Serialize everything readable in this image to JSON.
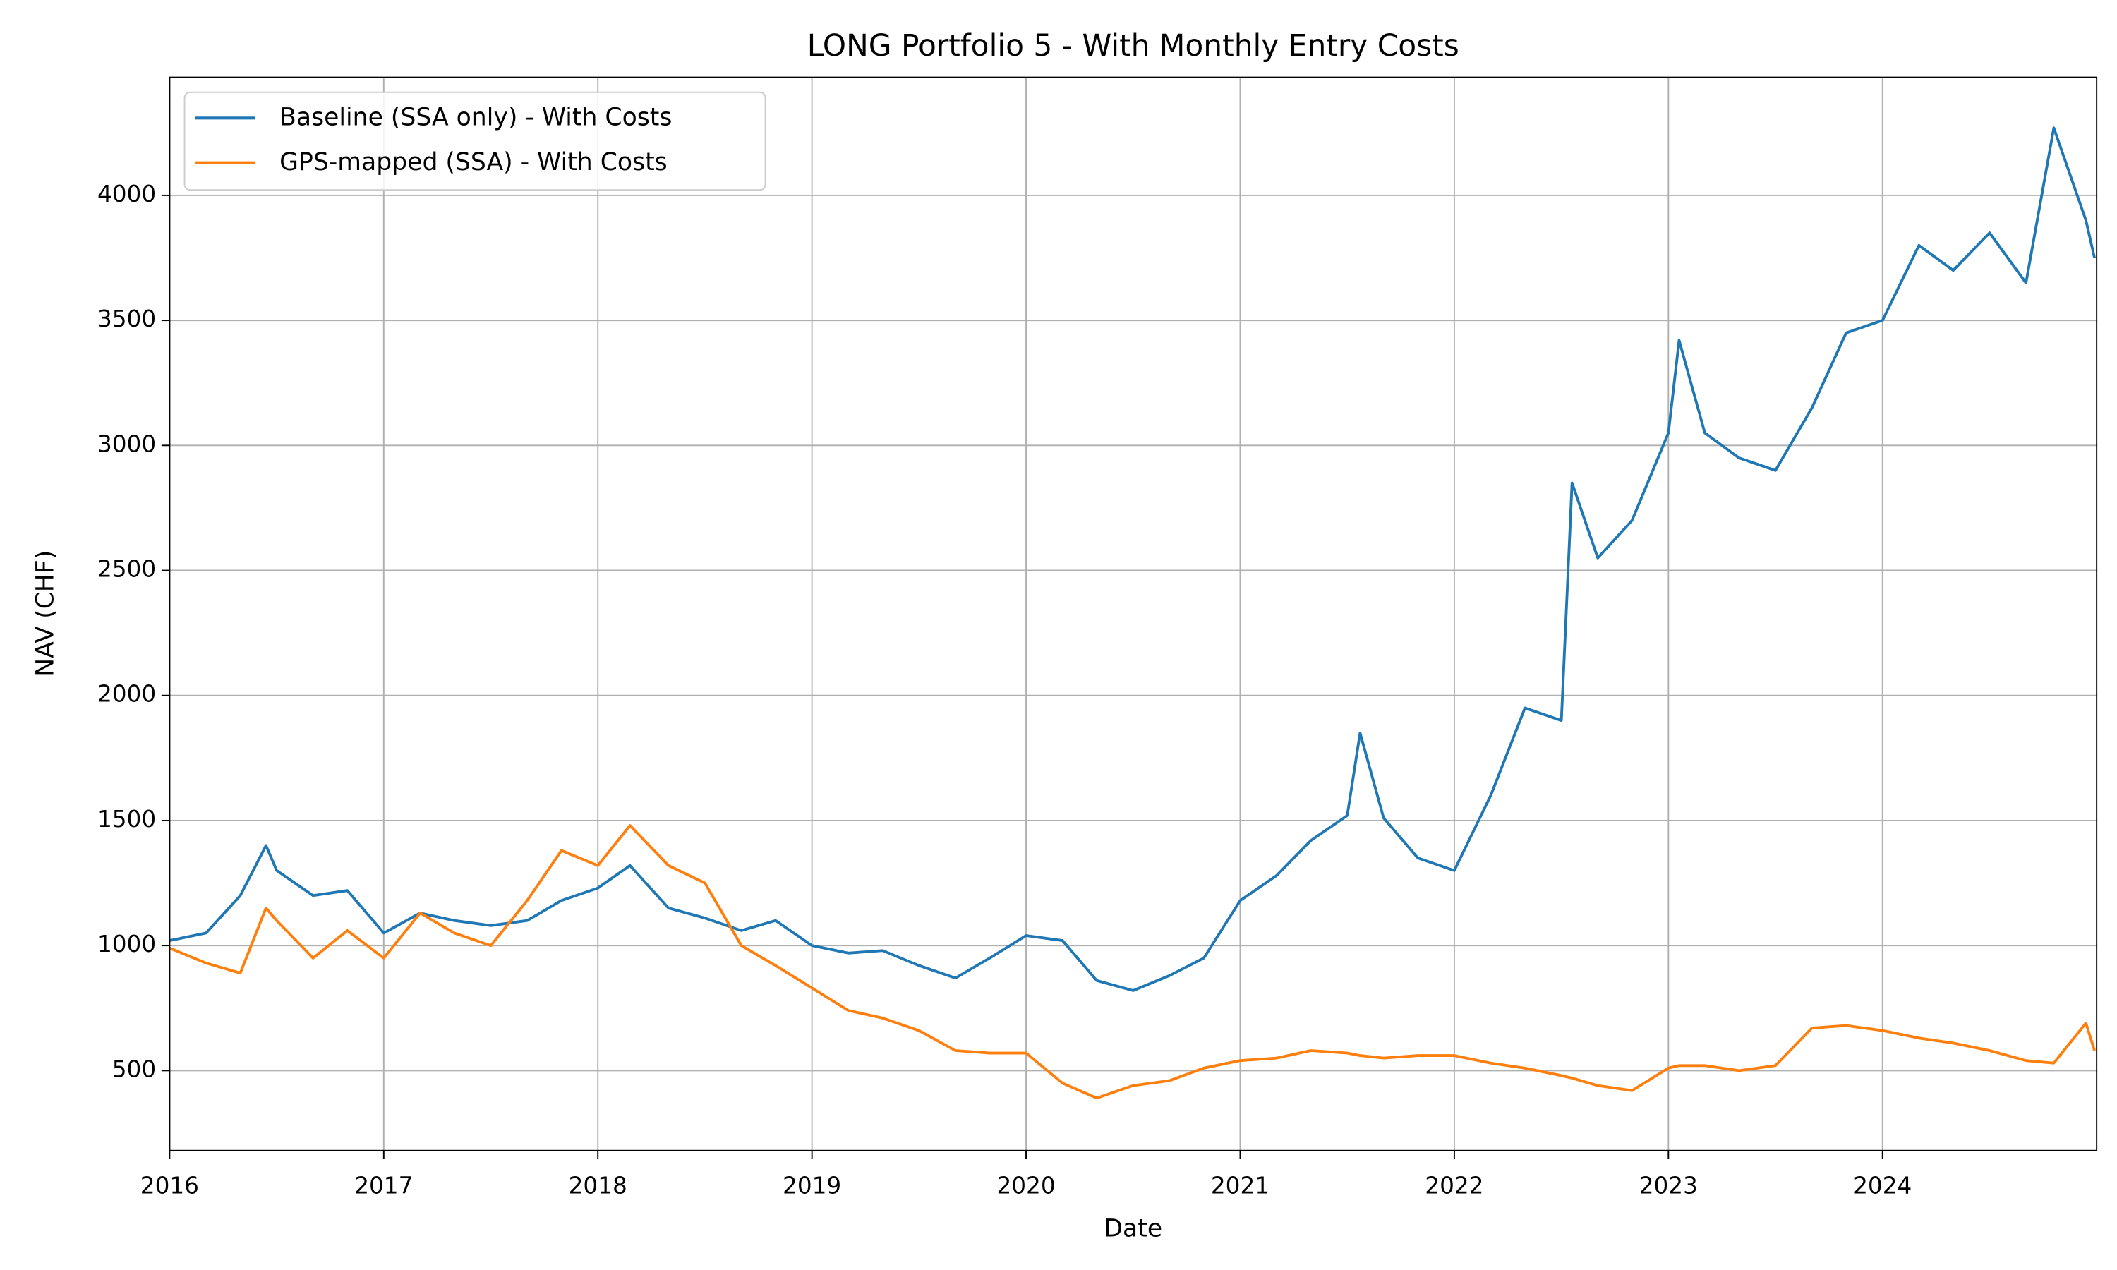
{
  "chart_data": {
    "type": "line",
    "title": "LONG Portfolio 5 - With Monthly Entry Costs",
    "xlabel": "Date",
    "ylabel": "NAV (CHF)",
    "x": [
      2016.0,
      2016.17,
      2016.33,
      2016.45,
      2016.5,
      2016.67,
      2016.83,
      2017.0,
      2017.17,
      2017.33,
      2017.5,
      2017.67,
      2017.83,
      2018.0,
      2018.15,
      2018.33,
      2018.5,
      2018.67,
      2018.83,
      2019.0,
      2019.17,
      2019.33,
      2019.5,
      2019.67,
      2019.83,
      2020.0,
      2020.17,
      2020.33,
      2020.5,
      2020.67,
      2020.83,
      2021.0,
      2021.17,
      2021.33,
      2021.5,
      2021.56,
      2021.67,
      2021.83,
      2022.0,
      2022.17,
      2022.33,
      2022.5,
      2022.55,
      2022.67,
      2022.83,
      2023.0,
      2023.05,
      2023.17,
      2023.33,
      2023.5,
      2023.67,
      2023.83,
      2024.0,
      2024.17,
      2024.33,
      2024.5,
      2024.67,
      2024.8,
      2024.95,
      2024.99
    ],
    "series": [
      {
        "name": "Baseline (SSA only) - With Costs",
        "color": "#1f77b4",
        "values": [
          1020,
          1050,
          1200,
          1400,
          1300,
          1200,
          1220,
          1050,
          1130,
          1100,
          1080,
          1100,
          1180,
          1230,
          1320,
          1150,
          1110,
          1060,
          1100,
          1000,
          970,
          980,
          920,
          870,
          950,
          1040,
          1020,
          860,
          820,
          880,
          950,
          1180,
          1280,
          1420,
          1520,
          1850,
          1510,
          1350,
          1300,
          1600,
          1950,
          1900,
          2850,
          2550,
          2700,
          3050,
          3420,
          3050,
          2950,
          2900,
          3150,
          3450,
          3500,
          3800,
          3700,
          3850,
          3650,
          4270,
          3900,
          3750
        ]
      },
      {
        "name": "GPS-mapped (SSA) - With Costs",
        "color": "#ff7f0e",
        "values": [
          990,
          930,
          890,
          1150,
          1100,
          950,
          1060,
          950,
          1130,
          1050,
          1000,
          1180,
          1380,
          1320,
          1480,
          1320,
          1250,
          1000,
          920,
          830,
          740,
          710,
          660,
          580,
          570,
          570,
          450,
          390,
          440,
          460,
          510,
          540,
          550,
          580,
          570,
          560,
          550,
          560,
          560,
          530,
          510,
          480,
          470,
          440,
          420,
          510,
          520,
          520,
          500,
          520,
          670,
          680,
          660,
          630,
          610,
          580,
          540,
          530,
          690,
          580
        ]
      }
    ],
    "xlim": [
      2016,
      2025
    ],
    "ylim": [
      180,
      4472
    ],
    "xticks": [
      2016,
      2017,
      2018,
      2019,
      2020,
      2021,
      2022,
      2023,
      2024
    ],
    "yticks": [
      500,
      1000,
      1500,
      2000,
      2500,
      3000,
      3500,
      4000
    ],
    "grid": true,
    "legend": "upper-left"
  }
}
